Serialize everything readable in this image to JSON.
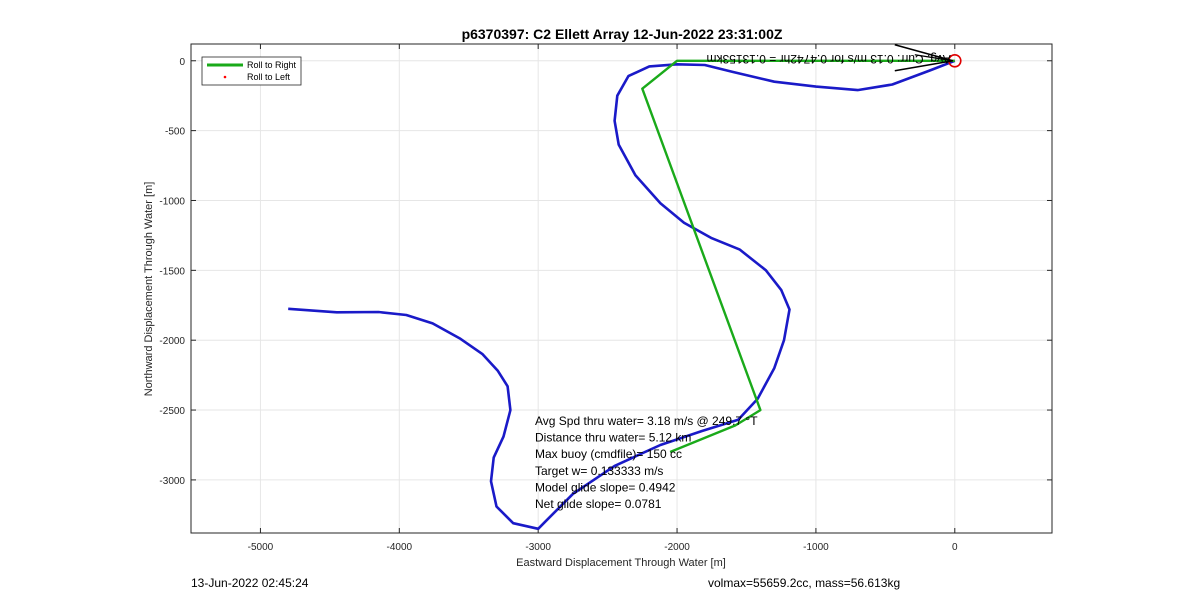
{
  "chart_data": {
    "type": "line",
    "title": "p6370397: C2 Ellett Array 12-Jun-2022 23:31:00Z",
    "xlabel": "Eastward Displacement Through Water [m]",
    "ylabel": "Northward Displacement Through Water [m]",
    "xlim": [
      -5500,
      700
    ],
    "ylim": [
      -3380,
      120
    ],
    "x_ticks": [
      -5000,
      -4000,
      -3000,
      -2000,
      -1000,
      0
    ],
    "y_ticks": [
      0,
      -500,
      -1000,
      -1500,
      -2000,
      -2500,
      -3000
    ],
    "grid": true,
    "legend_placement": "top-left",
    "series": [
      {
        "name": "Roll to Right",
        "color": "#1aaa1a",
        "points": [
          [
            0,
            0
          ],
          [
            -1000,
            0
          ],
          [
            -2000,
            0
          ],
          [
            -2250,
            -200
          ],
          [
            -1400,
            -2500
          ],
          [
            -1580,
            -2610
          ],
          [
            -2050,
            -2800
          ]
        ]
      },
      {
        "name": "Roll to Left",
        "color": "#ff0000",
        "points": []
      },
      {
        "name": "",
        "color": "#1a1ac8",
        "points": [
          [
            0,
            0
          ],
          [
            -180,
            -70
          ],
          [
            -450,
            -170
          ],
          [
            -700,
            -210
          ],
          [
            -1000,
            -185
          ],
          [
            -1300,
            -150
          ],
          [
            -1600,
            -80
          ],
          [
            -1800,
            -30
          ],
          [
            -2000,
            -25
          ],
          [
            -2200,
            -40
          ],
          [
            -2350,
            -110
          ],
          [
            -2430,
            -250
          ],
          [
            -2450,
            -430
          ],
          [
            -2420,
            -600
          ],
          [
            -2300,
            -820
          ],
          [
            -2120,
            -1020
          ],
          [
            -1950,
            -1160
          ],
          [
            -1750,
            -1270
          ],
          [
            -1550,
            -1350
          ],
          [
            -1360,
            -1500
          ],
          [
            -1250,
            -1640
          ],
          [
            -1190,
            -1780
          ],
          [
            -1230,
            -2000
          ],
          [
            -1300,
            -2200
          ],
          [
            -1420,
            -2420
          ],
          [
            -1560,
            -2570
          ],
          [
            -1820,
            -2650
          ],
          [
            -2120,
            -2750
          ],
          [
            -2450,
            -2900
          ],
          [
            -2750,
            -3100
          ],
          [
            -2950,
            -3300
          ],
          [
            -3000,
            -3350
          ],
          [
            -3180,
            -3310
          ],
          [
            -3300,
            -3190
          ],
          [
            -3340,
            -3010
          ],
          [
            -3320,
            -2840
          ],
          [
            -3250,
            -2690
          ],
          [
            -3200,
            -2500
          ],
          [
            -3220,
            -2330
          ],
          [
            -3290,
            -2220
          ],
          [
            -3400,
            -2100
          ],
          [
            -3560,
            -1990
          ],
          [
            -3760,
            -1880
          ],
          [
            -3950,
            -1820
          ],
          [
            -4150,
            -1798
          ],
          [
            -4450,
            -1800
          ],
          [
            -4800,
            -1775
          ]
        ]
      }
    ],
    "annotations": [
      "Avg Spd thru water=  3.18 m/s @ 249.7 °T",
      "Distance thru water=  5.12 km",
      "Max buoy (cmdfile)= 150 cc",
      "Target w= 0.133333 m/s",
      "Model glide slope= 0.4942",
      "Net glide slope= 0.0781"
    ],
    "current_vector_label": "Avg. Curr: 0.13 m/s for 0.4742hr = 0.13153km"
  },
  "footer": {
    "timestamp": "13-Jun-2022 02:45:24",
    "info": "volmax=55659.2cc, mass=56.613kg"
  }
}
